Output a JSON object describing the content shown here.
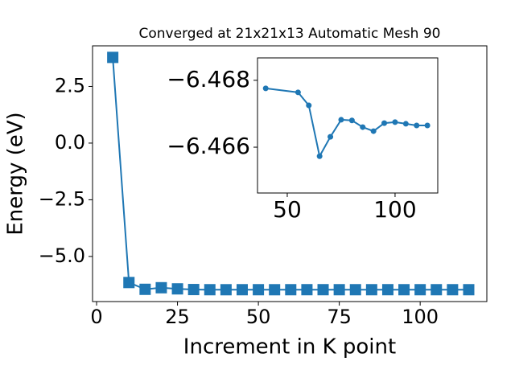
{
  "chart_data": [
    {
      "type": "line",
      "title": "Converged at 21x21x13 Automatic Mesh 90",
      "x_label": "Increment in K point",
      "y_label": "Energy (eV)",
      "x": [
        5,
        10,
        15,
        20,
        25,
        30,
        35,
        40,
        45,
        50,
        55,
        60,
        65,
        70,
        75,
        80,
        85,
        90,
        95,
        100,
        105,
        110,
        115
      ],
      "series": [
        {
          "color": "#1f77b4",
          "marker": "square",
          "values": [
            3.78,
            -6.15,
            -6.45,
            -6.38,
            -6.43,
            -6.46,
            -6.467,
            -6.468,
            -6.467,
            -6.467,
            -6.468,
            -6.467,
            -6.466,
            -6.466,
            -6.467,
            -6.467,
            -6.467,
            -6.466,
            -6.467,
            -6.467,
            -6.467,
            -6.467,
            -6.467
          ]
        }
      ],
      "xlim": [
        -1.25,
        120.6
      ],
      "ylim": [
        -6.99,
        4.29
      ],
      "xticks": [
        0,
        25,
        50,
        75,
        100
      ],
      "yticks": [
        {
          "value": -5.0,
          "label": "−5.0"
        },
        {
          "value": -2.5,
          "label": "−2.5"
        },
        {
          "value": 0.0,
          "label": "0.0"
        },
        {
          "value": 2.5,
          "label": "2.5"
        }
      ]
    },
    {
      "type": "line",
      "x": [
        40,
        55,
        60,
        65,
        70,
        75,
        80,
        85,
        90,
        95,
        100,
        105,
        110,
        115
      ],
      "series": [
        {
          "color": "#1f77b4",
          "marker": "circle",
          "values": [
            -6.46776,
            -6.46764,
            -6.46725,
            -6.46573,
            -6.46631,
            -6.46682,
            -6.4668,
            -6.4666,
            -6.46648,
            -6.46672,
            -6.46675,
            -6.4667,
            -6.46665,
            -6.46665
          ]
        }
      ],
      "xlim": [
        36.2,
        119.8
      ],
      "ylim": [
        -6.46463,
        -6.46867
      ],
      "xticks": [
        50,
        100
      ],
      "yticks": [
        {
          "value": -6.468,
          "label": "−6.468"
        },
        {
          "value": -6.466,
          "label": "−6.466"
        }
      ]
    }
  ]
}
